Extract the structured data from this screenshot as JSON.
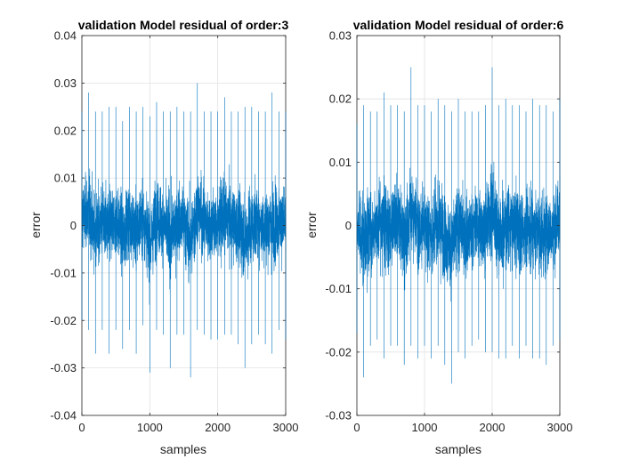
{
  "chart_data": [
    {
      "type": "line",
      "title": "validation Model residual of order:3",
      "xlabel": "samples",
      "ylabel": "error",
      "xlim": [
        0,
        3000
      ],
      "ylim": [
        -0.04,
        0.04
      ],
      "xticks": [
        0,
        1000,
        2000,
        3000
      ],
      "xtick_labels": [
        "0",
        "1000",
        "2000",
        "3000"
      ],
      "yticks": [
        0.04,
        0.03,
        0.02,
        0.01,
        0,
        -0.01,
        -0.02,
        -0.03,
        -0.04
      ],
      "ytick_labels": [
        "0.04",
        "0.03",
        "0.02",
        "0.01",
        "0",
        "-0.01",
        "-0.02",
        "-0.03",
        "-0.04"
      ],
      "grid": true,
      "series": [
        {
          "color": "#0072BD",
          "x": [
            0,
            100,
            200,
            300,
            400,
            500,
            600,
            700,
            800,
            900,
            1000,
            1100,
            1200,
            1300,
            1400,
            1500,
            1600,
            1700,
            1800,
            1900,
            2000,
            2100,
            2200,
            2300,
            2400,
            2500,
            2600,
            2700,
            2800,
            2900,
            3000
          ],
          "max_envelope": [
            0.024,
            0.028,
            0.024,
            0.024,
            0.025,
            0.025,
            0.022,
            0.025,
            0.024,
            0.025,
            0.023,
            0.026,
            0.024,
            0.024,
            0.025,
            0.024,
            0.024,
            0.03,
            0.024,
            0.024,
            0.024,
            0.027,
            0.024,
            0.024,
            0.025,
            0.025,
            0.024,
            0.024,
            0.028,
            0.024,
            0.024
          ],
          "min_envelope": [
            -0.02,
            -0.022,
            -0.027,
            -0.022,
            -0.027,
            -0.022,
            -0.026,
            -0.022,
            -0.027,
            -0.021,
            -0.031,
            -0.022,
            -0.023,
            -0.03,
            -0.023,
            -0.023,
            -0.032,
            -0.022,
            -0.023,
            -0.024,
            -0.024,
            -0.023,
            -0.023,
            -0.025,
            -0.03,
            -0.025,
            -0.023,
            -0.025,
            -0.027,
            -0.022,
            -0.024
          ]
        }
      ]
    },
    {
      "type": "line",
      "title": "validation Model residual of order:6",
      "xlabel": "samples",
      "ylabel": "error",
      "xlim": [
        0,
        3000
      ],
      "ylim": [
        -0.03,
        0.03
      ],
      "xticks": [
        0,
        1000,
        2000,
        3000
      ],
      "xtick_labels": [
        "0",
        "1000",
        "2000",
        "3000"
      ],
      "yticks": [
        0.03,
        0.02,
        0.01,
        0,
        -0.01,
        -0.02,
        -0.03
      ],
      "ytick_labels": [
        "0.03",
        "0.02",
        "0.01",
        "0",
        "-0.01",
        "-0.02",
        "-0.03"
      ],
      "grid": true,
      "series": [
        {
          "color": "#0072BD",
          "x": [
            0,
            100,
            200,
            300,
            400,
            500,
            600,
            700,
            800,
            900,
            1000,
            1100,
            1200,
            1300,
            1400,
            1500,
            1600,
            1700,
            1800,
            1900,
            2000,
            2100,
            2200,
            2300,
            2400,
            2500,
            2600,
            2700,
            2800,
            2900,
            3000
          ],
          "max_envelope": [
            0.016,
            0.019,
            0.018,
            0.018,
            0.021,
            0.019,
            0.019,
            0.018,
            0.025,
            0.019,
            0.019,
            0.018,
            0.02,
            0.019,
            0.018,
            0.02,
            0.018,
            0.018,
            0.018,
            0.019,
            0.025,
            0.019,
            0.02,
            0.019,
            0.019,
            0.018,
            0.02,
            0.019,
            0.019,
            0.018,
            0.02
          ],
          "min_envelope": [
            -0.017,
            -0.024,
            -0.019,
            -0.018,
            -0.021,
            -0.019,
            -0.019,
            -0.022,
            -0.019,
            -0.021,
            -0.019,
            -0.021,
            -0.019,
            -0.022,
            -0.025,
            -0.02,
            -0.021,
            -0.019,
            -0.018,
            -0.02,
            -0.02,
            -0.021,
            -0.021,
            -0.019,
            -0.021,
            -0.019,
            -0.021,
            -0.021,
            -0.022,
            -0.019,
            -0.018
          ]
        }
      ]
    }
  ]
}
